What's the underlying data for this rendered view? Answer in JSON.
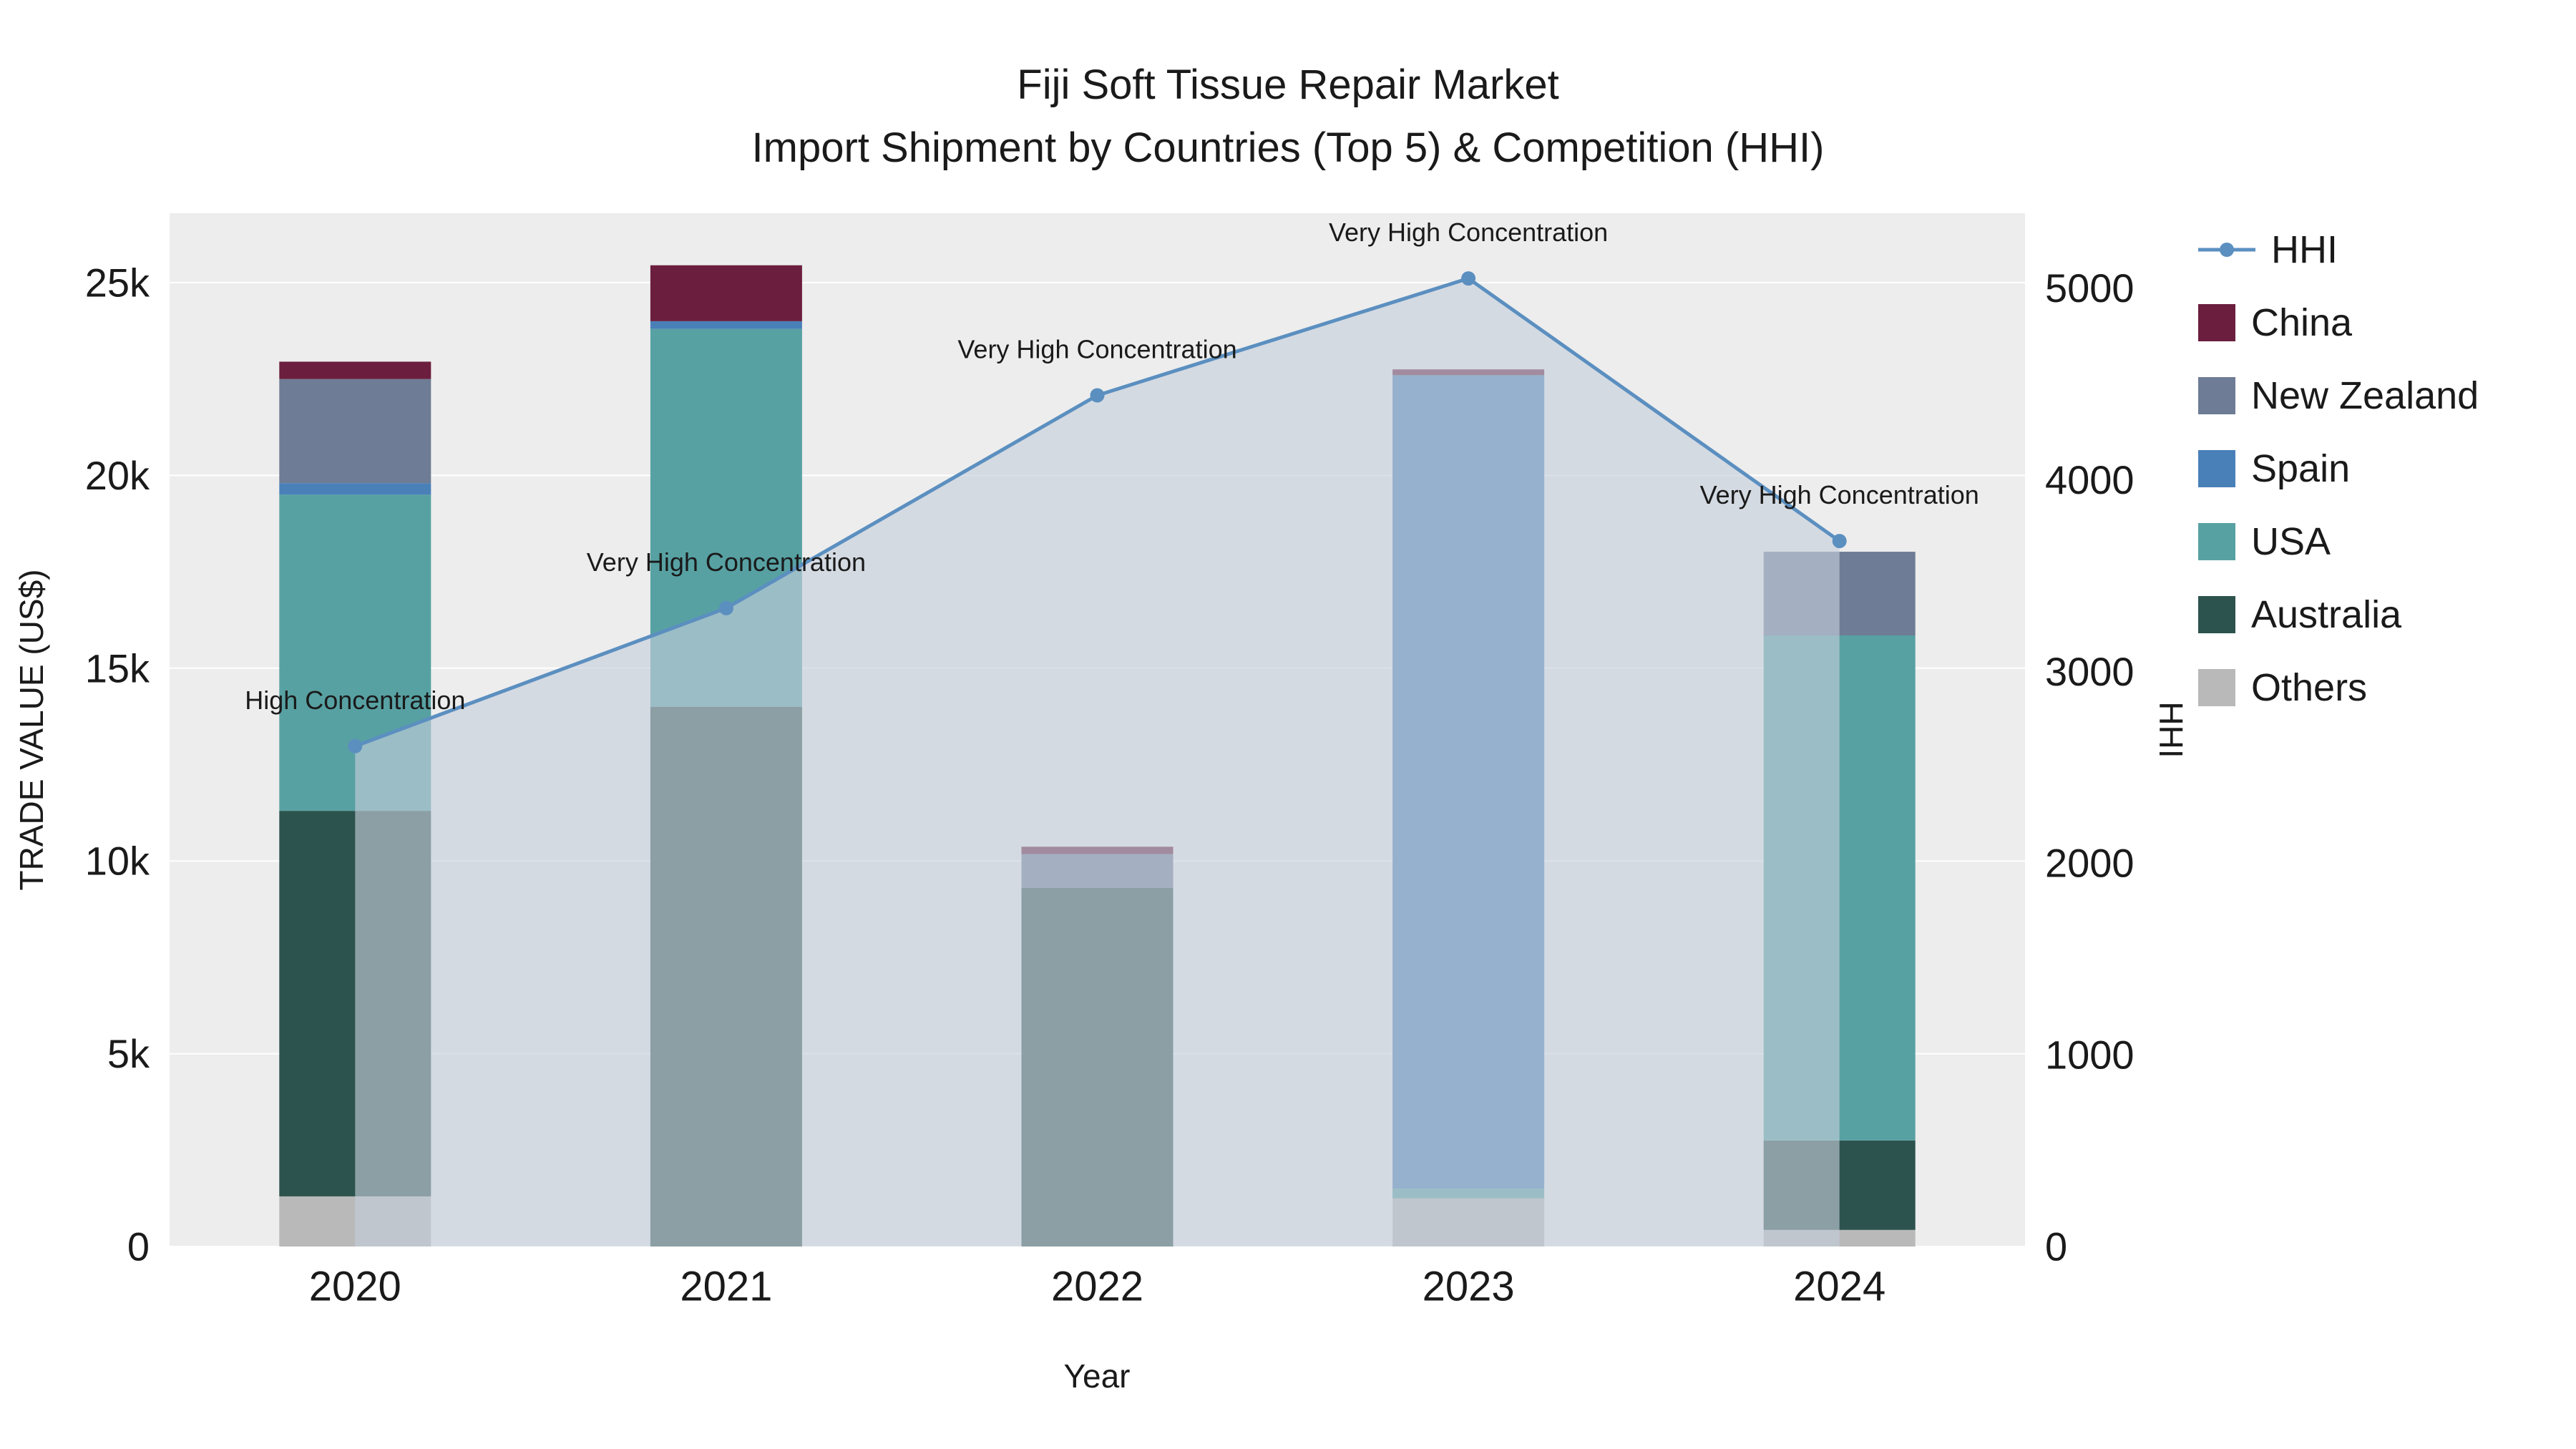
{
  "title": {
    "line1": "Fiji Soft Tissue Repair Market",
    "line2": "Import Shipment by Countries (Top 5) & Competition (HHI)"
  },
  "axes": {
    "x_title": "Year",
    "y_left_title": "TRADE VALUE (US$)",
    "y_right_title": "HHI"
  },
  "chart_data": {
    "type": "bar",
    "stacked": true,
    "grid": true,
    "legend_position": "top-right",
    "categories": [
      "2020",
      "2021",
      "2022",
      "2023",
      "2024"
    ],
    "series": [
      {
        "name": "Others",
        "color": "#b9b9b9",
        "values": [
          1300,
          0,
          0,
          1250,
          430
        ]
      },
      {
        "name": "Australia",
        "color": "#2d534e",
        "values": [
          10000,
          14000,
          9300,
          0,
          2320
        ]
      },
      {
        "name": "USA",
        "color": "#58a1a3",
        "values": [
          8200,
          9800,
          0,
          250,
          13100
        ]
      },
      {
        "name": "Spain",
        "color": "#4a80b8",
        "values": [
          300,
          200,
          0,
          21100,
          0
        ]
      },
      {
        "name": "New Zealand",
        "color": "#6e7c95",
        "values": [
          2700,
          0,
          880,
          0,
          2170
        ]
      },
      {
        "name": "China",
        "color": "#6b1e3d",
        "values": [
          450,
          1450,
          190,
          150,
          0
        ]
      }
    ],
    "line": {
      "name": "HHI",
      "axis": "right",
      "color": "#5b8fc0",
      "fill_color": "rgba(197,206,220,0.62)",
      "values": [
        2610,
        3330,
        4440,
        5050,
        3680
      ]
    },
    "annotations": [
      "High Concentration",
      "Very High Concentration",
      "Very High Concentration",
      "Very High Concentration",
      "Very High Concentration"
    ],
    "y_left": {
      "max": 26800,
      "ticks": [
        0,
        5000,
        10000,
        15000,
        20000,
        25000
      ],
      "tick_labels": [
        "0",
        "5k",
        "10k",
        "15k",
        "20k",
        "25k"
      ]
    },
    "y_right": {
      "max": 5390,
      "ticks": [
        0,
        1000,
        2000,
        3000,
        4000,
        5000
      ],
      "tick_labels": [
        "0",
        "1000",
        "2000",
        "3000",
        "4000",
        "5000"
      ]
    }
  }
}
